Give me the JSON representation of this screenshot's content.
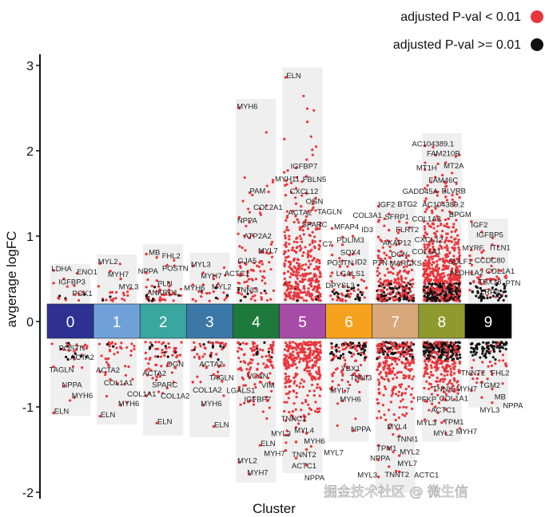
{
  "chart_data": {
    "type": "scatter",
    "title": "",
    "xlabel": "Cluster",
    "ylabel": "avgerage logFC",
    "ylim": [
      -2.05,
      3.1
    ],
    "yticks": [
      "-2",
      "-1",
      "0",
      "1",
      "2",
      "3"
    ],
    "legend": {
      "placement": "top-right",
      "entries": [
        {
          "label": "adjusted P-val < 0.01",
          "color": "#e8363c"
        },
        {
          "label": "adjusted  P-val >= 0.01",
          "color": "#111111"
        }
      ]
    },
    "clusters": [
      {
        "id": "0",
        "color": "#2e3192",
        "range": [
          -1.05,
          0.62
        ],
        "n_up": 12,
        "n_down": 25,
        "nonsig_frac": 0.15,
        "genes": [
          [
            "LDHA",
            0.6
          ],
          [
            "IGFBP3",
            0.5
          ],
          [
            "PGK1",
            0.42
          ],
          [
            "ENO1",
            0.45
          ],
          [
            "POSTN",
            -0.33
          ],
          [
            "ACTA2",
            -0.44
          ],
          [
            "TAGLN",
            -0.53
          ],
          [
            "NPPA",
            -0.76
          ],
          [
            "MYH6",
            -0.89
          ],
          [
            "ELN",
            -1.07
          ]
        ]
      },
      {
        "id": "1",
        "color": "#6fa1d8",
        "range": [
          -1.15,
          0.73
        ],
        "n_up": 20,
        "n_down": 40,
        "nonsig_frac": 0.1,
        "genes": [
          [
            "MYL2",
            0.68
          ],
          [
            "MYH7",
            0.59
          ],
          [
            "MYL3",
            0.5
          ],
          [
            "ACTA2",
            -0.59
          ],
          [
            "COL1A1",
            -0.68
          ],
          [
            "MYH6",
            -0.98
          ],
          [
            "ELN",
            -1.11
          ]
        ]
      },
      {
        "id": "2",
        "color": "#3aa6a0",
        "range": [
          -1.28,
          0.85
        ],
        "n_up": 45,
        "n_down": 60,
        "nonsig_frac": 0.1,
        "genes": [
          [
            "MB",
            0.79
          ],
          [
            "FHL2",
            0.75
          ],
          [
            "POSTN",
            0.66
          ],
          [
            "NPPA",
            0.57
          ],
          [
            "PLN",
            0.48
          ],
          [
            "OGN",
            -0.52
          ],
          [
            "ACTA2",
            -0.57
          ],
          [
            "SPARC",
            -0.65
          ],
          [
            "COL1A2",
            -0.78
          ],
          [
            "COL1A1",
            -0.87
          ],
          [
            "ELN",
            -1.19
          ]
        ]
      },
      {
        "id": "3",
        "color": "#3b78a8",
        "range": [
          -1.3,
          0.75
        ],
        "n_up": 22,
        "n_down": 50,
        "nonsig_frac": 0.15,
        "genes": [
          [
            "MYL3",
            0.65
          ],
          [
            "MYH7",
            0.57
          ],
          [
            "MYL2",
            0.5
          ],
          [
            "MYH6",
            0.43
          ],
          [
            "ACTC1",
            0.43
          ],
          [
            "TNNI3",
            0.35
          ],
          [
            "ANKRD1",
            0.26
          ],
          [
            "ACTA2",
            -0.52
          ],
          [
            "TAGLN",
            -0.62
          ],
          [
            "COL1A2",
            -0.71
          ],
          [
            "MYH6",
            -0.98
          ],
          [
            "ELN",
            -1.23
          ]
        ]
      },
      {
        "id": "4",
        "color": "#1d7a3a",
        "range": [
          -1.83,
          2.55
        ],
        "n_up": 90,
        "n_down": 120,
        "nonsig_frac": 0.05,
        "genes": [
          [
            "MYH6",
            2.5
          ],
          [
            "PAM",
            1.51
          ],
          [
            "COL2A1",
            1.32
          ],
          [
            "NPPA",
            1.22
          ],
          [
            "ATP2A2",
            0.98
          ],
          [
            "MYL7",
            0.81
          ],
          [
            "GJA5",
            0.69
          ],
          [
            "VCAN",
            -0.66
          ],
          [
            "VIM",
            -0.71
          ],
          [
            "LGALS1",
            -0.77
          ],
          [
            "IGFBP7",
            -0.93
          ],
          [
            "ELN",
            -1.45
          ],
          [
            "MYL2",
            -1.65
          ],
          [
            "MYH7",
            -1.79
          ]
        ]
      },
      {
        "id": "5",
        "color": "#a64ca6",
        "range": [
          -1.72,
          2.92
        ],
        "n_up": 350,
        "n_down": 300,
        "nonsig_frac": 0.03,
        "genes": [
          [
            "ELN",
            2.86
          ],
          [
            "IGFBP7",
            1.8
          ],
          [
            "FBLN5",
            1.7
          ],
          [
            "MYH11",
            1.65
          ],
          [
            "CXCL12",
            1.56
          ],
          [
            "OGN",
            1.5
          ],
          [
            "ACTA2",
            1.48
          ],
          [
            "TAGLN",
            1.38
          ],
          [
            "SPARC",
            1.23
          ],
          [
            "TNNC1",
            -1.16
          ],
          [
            "MYL4",
            -1.24
          ],
          [
            "MYH6",
            -1.31
          ],
          [
            "MYL3",
            -1.33
          ],
          [
            "TNNT2",
            -1.41
          ],
          [
            "MYL7",
            -1.5
          ],
          [
            "MYH7",
            -1.51
          ],
          [
            "ACTC1",
            -1.6
          ],
          [
            "NPPA",
            -1.68
          ]
        ]
      },
      {
        "id": "6",
        "color": "#f6a21e",
        "range": [
          -1.35,
          0.88
        ],
        "n_up": 60,
        "n_down": 120,
        "nonsig_frac": 0.2,
        "genes": [
          [
            "MFAP4",
            1.09
          ],
          [
            "PDLIM3",
            0.99
          ],
          [
            "ID3",
            1.0
          ],
          [
            "C7",
            0.89
          ],
          [
            "SOX4",
            0.9
          ],
          [
            "ID2",
            0.79
          ],
          [
            "POSTN",
            0.78
          ],
          [
            "LGALS1",
            0.71
          ],
          [
            "PTN",
            0.67
          ],
          [
            "DPYSL3",
            0.57
          ],
          [
            "YBX1",
            -0.57
          ],
          [
            "TNNI3",
            -0.62
          ],
          [
            "MYL7",
            -0.77
          ],
          [
            "MYH6",
            -0.93
          ],
          [
            "NPPA",
            -1.28
          ]
        ]
      },
      {
        "id": "7",
        "color": "#d8a77a",
        "range": [
          -1.95,
          1.35
        ],
        "n_up": 250,
        "n_down": 300,
        "nonsig_frac": 0.2,
        "genes": [
          [
            "IGF2",
            1.35
          ],
          [
            "SFRP1",
            1.26
          ],
          [
            "FLRT2",
            1.17
          ],
          [
            "COL3A1",
            1.17
          ],
          [
            "AKAP12",
            1.07
          ],
          [
            "COL1A2",
            1.07
          ],
          [
            "DCN",
            0.99
          ],
          [
            "CXCL12",
            0.94
          ],
          [
            "COL1A1",
            0.91
          ],
          [
            "MARCKS",
            0.83
          ],
          [
            "MYL4",
            -1.25
          ],
          [
            "TNNI1",
            -1.34
          ],
          [
            "TPM1",
            -1.45
          ],
          [
            "MYL2",
            -1.49
          ],
          [
            "MYL7",
            -1.57
          ],
          [
            "NPPA",
            -1.62
          ],
          [
            "TNNT2",
            -1.7
          ],
          [
            "ACTC1",
            -1.76
          ],
          [
            "MYL3",
            -1.82
          ]
        ]
      },
      {
        "id": "8",
        "color": "#8e9a2e",
        "range": [
          -1.35,
          2.15
        ],
        "n_up": 700,
        "n_down": 400,
        "nonsig_frac": 0.3,
        "genes": [
          [
            "AC104389.1",
            2.06
          ],
          [
            "FAM210B",
            1.95
          ],
          [
            "MT2A",
            1.86
          ],
          [
            "MT1H",
            1.78
          ],
          [
            "FAM46C",
            1.69
          ],
          [
            "BLVRB",
            1.62
          ],
          [
            "GADD45A",
            1.56
          ],
          [
            "AC104389.2",
            1.52
          ],
          [
            "BPGM",
            1.46
          ],
          [
            "BTG2",
            1.41
          ],
          [
            "TNNI1",
            -0.81
          ],
          [
            "COL1A1",
            -0.92
          ],
          [
            "PFKP",
            -0.93
          ],
          [
            "ACTC1",
            -1.0
          ],
          [
            "TPM1",
            -1.03
          ],
          [
            "MYL3",
            -1.15
          ],
          [
            "MYL2",
            -1.16
          ],
          [
            "MYH7",
            -1.31
          ]
        ]
      },
      {
        "id": "9",
        "color": "#000000",
        "range": [
          -0.95,
          1.15
        ],
        "n_up": 80,
        "n_down": 100,
        "nonsig_frac": 0.45,
        "genes": [
          [
            "IGF2",
            1.17
          ],
          [
            "IGFBP5",
            1.05
          ],
          [
            "ITLN1",
            0.9
          ],
          [
            "MYRF",
            0.84
          ],
          [
            "CCDC80",
            0.81
          ],
          [
            "COL1A1",
            0.74
          ],
          [
            "ALDH1A2",
            0.72
          ],
          [
            "TBX18",
            0.61
          ],
          [
            "PTN",
            0.6
          ],
          [
            "SULF1",
            0.57
          ],
          [
            "LRP2",
            0.44
          ],
          [
            "FHL2",
            -0.62
          ],
          [
            "TNNT2",
            -0.62
          ],
          [
            "TGM2",
            -0.71
          ],
          [
            "MB",
            -0.79
          ],
          [
            "MYH7",
            -0.81
          ],
          [
            "MYL3",
            -0.89
          ],
          [
            "NPPA",
            -0.95
          ]
        ]
      }
    ]
  },
  "watermark": "掘金技术社区 @ 微生信"
}
